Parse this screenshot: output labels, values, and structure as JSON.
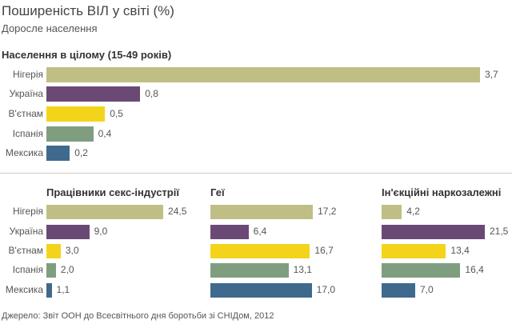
{
  "title": "Поширеність ВІЛ у світі (%)",
  "subtitle": "Доросле населення",
  "source": "Джерело: Звіт ООН до Всесвітнього дня боротьби зі СНІДом, 2012",
  "colors": {
    "Нігерія": "#bfbf85",
    "Україна": "#6a4a74",
    "В'єтнам": "#f4d41a",
    "Іспанія": "#7f9e80",
    "Мексика": "#3f6a8e"
  },
  "chart_data": [
    {
      "type": "bar",
      "title": "Населення в цілому (15-49 років)",
      "categories": [
        "Нігерія",
        "Україна",
        "В'єтнам",
        "Іспанія",
        "Мексика"
      ],
      "values": [
        3.7,
        0.8,
        0.5,
        0.4,
        0.2
      ],
      "labels": [
        "3,7",
        "0,8",
        "0,5",
        "0,4",
        "0,2"
      ]
    },
    {
      "type": "bar",
      "title": "Працівники секс-індустрії",
      "categories": [
        "Нігерія",
        "Україна",
        "В'єтнам",
        "Іспанія",
        "Мексика"
      ],
      "values": [
        24.5,
        9.0,
        3.0,
        2.0,
        1.1
      ],
      "labels": [
        "24,5",
        "9,0",
        "3,0",
        "2,0",
        "1,1"
      ]
    },
    {
      "type": "bar",
      "title": "Геї",
      "categories": [
        "Нігерія",
        "Україна",
        "В'єтнам",
        "Іспанія",
        "Мексика"
      ],
      "values": [
        17.2,
        6.4,
        16.7,
        13.1,
        17.0
      ],
      "labels": [
        "17,2",
        "6,4",
        "16,7",
        "13,1",
        "17,0"
      ]
    },
    {
      "type": "bar",
      "title": "Ін'єкційні наркозалежні",
      "categories": [
        "Нігерія",
        "Україна",
        "В'єтнам",
        "Іспанія",
        "Мексика"
      ],
      "values": [
        4.2,
        21.5,
        13.4,
        16.4,
        7.0
      ],
      "labels": [
        "4,2",
        "21,5",
        "13,4",
        "16,4",
        "7,0"
      ]
    }
  ]
}
